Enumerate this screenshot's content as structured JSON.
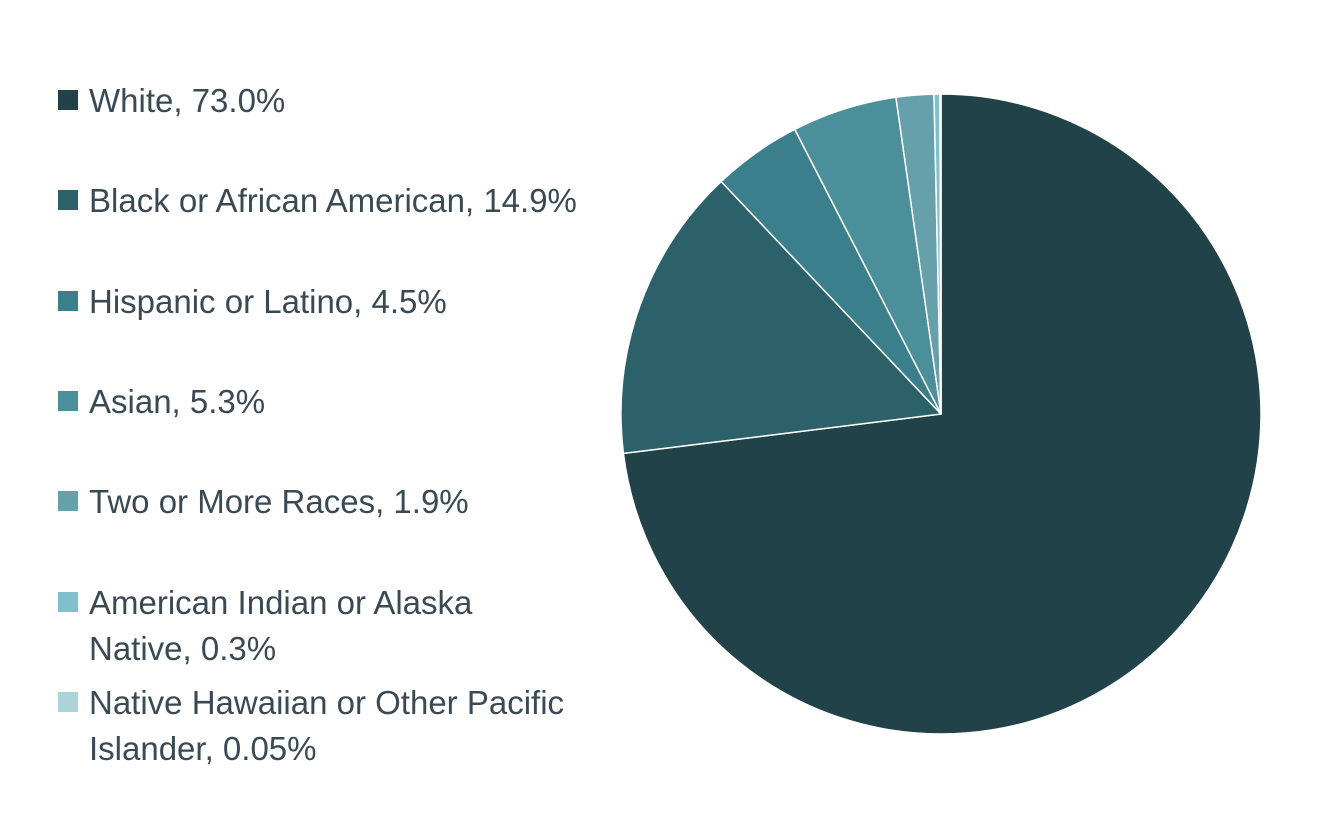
{
  "chart_data": {
    "type": "pie",
    "title": "",
    "slices": [
      {
        "label": "White, 73.0%",
        "category": "White",
        "value": 73.0,
        "color": "#204248"
      },
      {
        "label": "Black or African American, 14.9%",
        "category": "Black or African American",
        "value": 14.9,
        "color": "#2c616a"
      },
      {
        "label": "Hispanic or Latino, 4.5%",
        "category": "Hispanic or Latino",
        "value": 4.5,
        "color": "#3b7f8d"
      },
      {
        "label": "Asian, 5.3%",
        "category": "Asian",
        "value": 5.3,
        "color": "#4a8f99"
      },
      {
        "label": "Two or More Races, 1.9%",
        "category": "Two or More Races",
        "value": 1.9,
        "color": "#66a0aa"
      },
      {
        "label": "American Indian or Alaska Native, 0.3%",
        "category": "American Indian or Alaska Native",
        "value": 0.3,
        "color": "#82bfcc"
      },
      {
        "label": "Native Hawaiian or Other Pacific Islander, 0.05%",
        "category": "Native Hawaiian or Other Pacific Islander",
        "value": 0.05,
        "color": "#acd3d8"
      }
    ],
    "legend_position": "left",
    "start_angle": "12 o'clock",
    "direction": "clockwise"
  }
}
